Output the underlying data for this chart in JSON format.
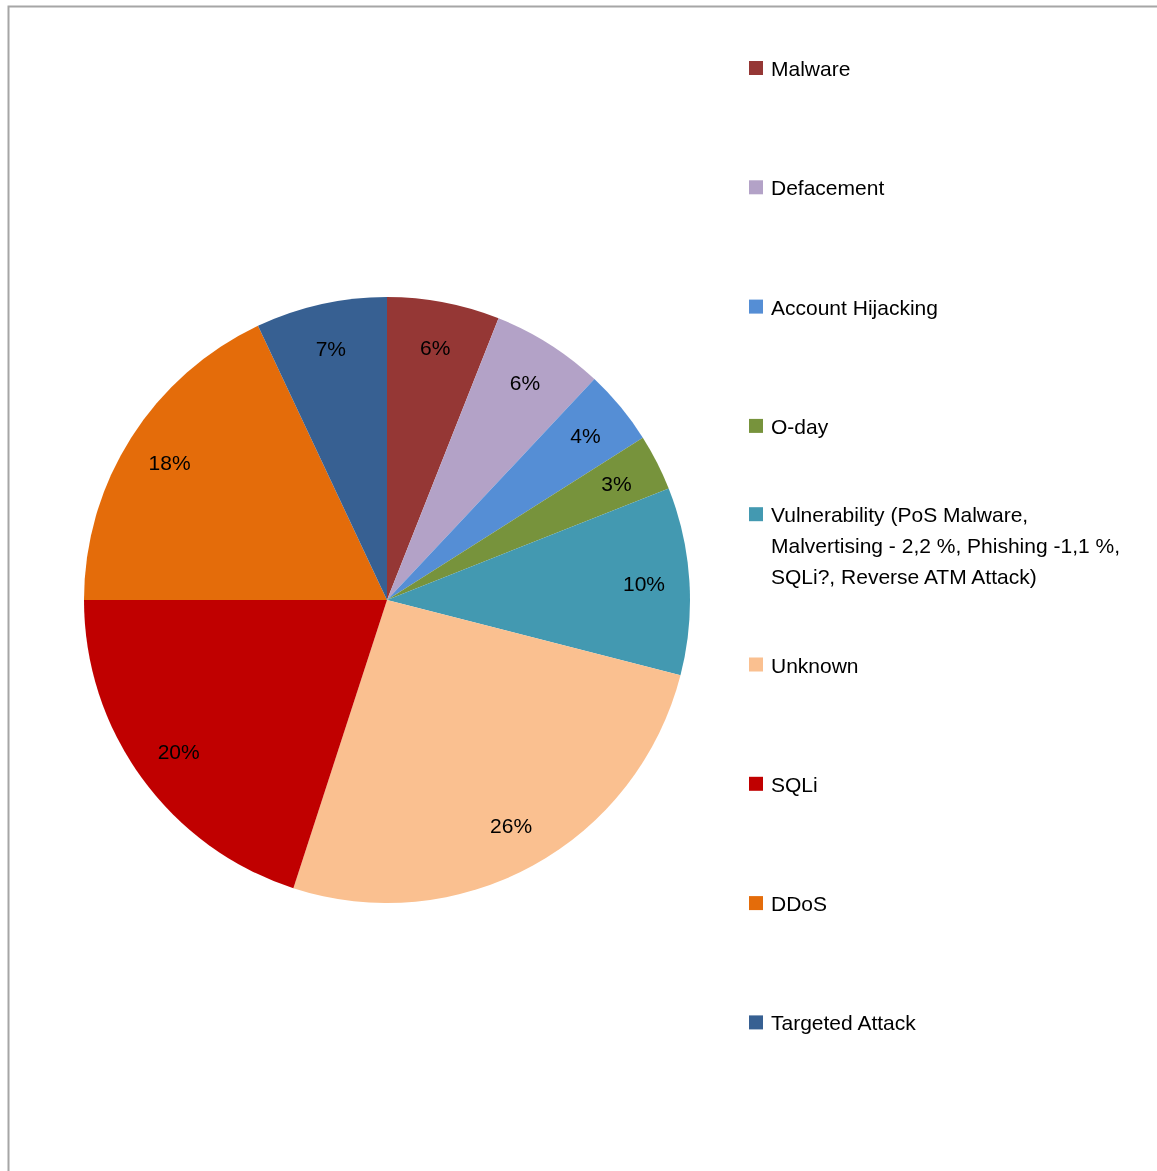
{
  "chart_data": {
    "type": "pie",
    "categories": [
      "Malware",
      "Defacement",
      "Account Hijacking",
      "O-day",
      "Vulnerability (PoS Malware, Malvertising - 2,2 %, Phishing -1,1 %, SQLi?, Reverse ATM Attack)",
      "Unknown",
      "SQLi",
      "DDoS",
      "Targeted Attack"
    ],
    "values": [
      6,
      6,
      4,
      3,
      10,
      26,
      20,
      18,
      7
    ],
    "value_labels": [
      "6%",
      "6%",
      "4%",
      "3%",
      "10%",
      "26%",
      "20%",
      "18%",
      "7%"
    ],
    "colors": [
      "#953735",
      "#b3a2c7",
      "#558ed5",
      "#77933c",
      "#4399b1",
      "#fac090",
      "#c00000",
      "#e46c0a",
      "#376092"
    ],
    "legend": "right"
  }
}
